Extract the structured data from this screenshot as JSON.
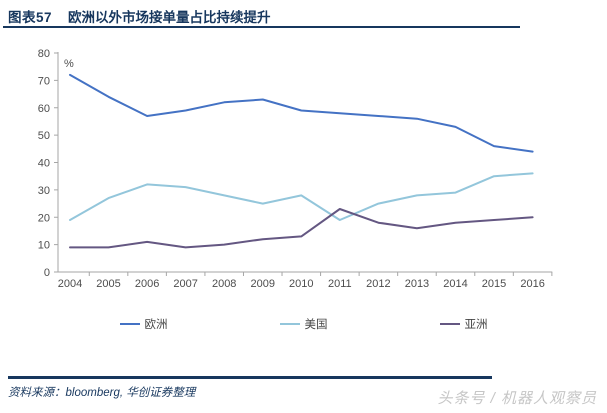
{
  "header": {
    "label": "图表57",
    "title": "欧洲以外市场接单量占比持续提升"
  },
  "chart_data": {
    "type": "line",
    "title": "欧洲以外市场接单量占比持续提升",
    "unit_label": "%",
    "categories": [
      "2004",
      "2005",
      "2006",
      "2007",
      "2008",
      "2009",
      "2010",
      "2011",
      "2012",
      "2013",
      "2014",
      "2015",
      "2016"
    ],
    "series": [
      {
        "name": "欧洲",
        "color": "#4472C4",
        "values": [
          72,
          64,
          57,
          59,
          62,
          63,
          59,
          58,
          57,
          56,
          53,
          46,
          44
        ]
      },
      {
        "name": "美国",
        "color": "#93C6DB",
        "values": [
          19,
          27,
          32,
          31,
          28,
          25,
          28,
          19,
          25,
          28,
          29,
          35,
          36
        ]
      },
      {
        "name": "亚洲",
        "color": "#645782",
        "values": [
          9,
          9,
          11,
          9,
          10,
          12,
          13,
          23,
          18,
          16,
          18,
          19,
          20
        ]
      }
    ],
    "ylim": [
      0,
      80
    ],
    "ytick_step": 10,
    "grid": false,
    "legend_position": "bottom",
    "axis_color": "#A6A6A6",
    "tick_label_color": "#4d4d4d"
  },
  "footer": {
    "source": "资料来源：bloomberg, 华创证券整理",
    "watermark": "头条号 / 机器人观察员"
  }
}
